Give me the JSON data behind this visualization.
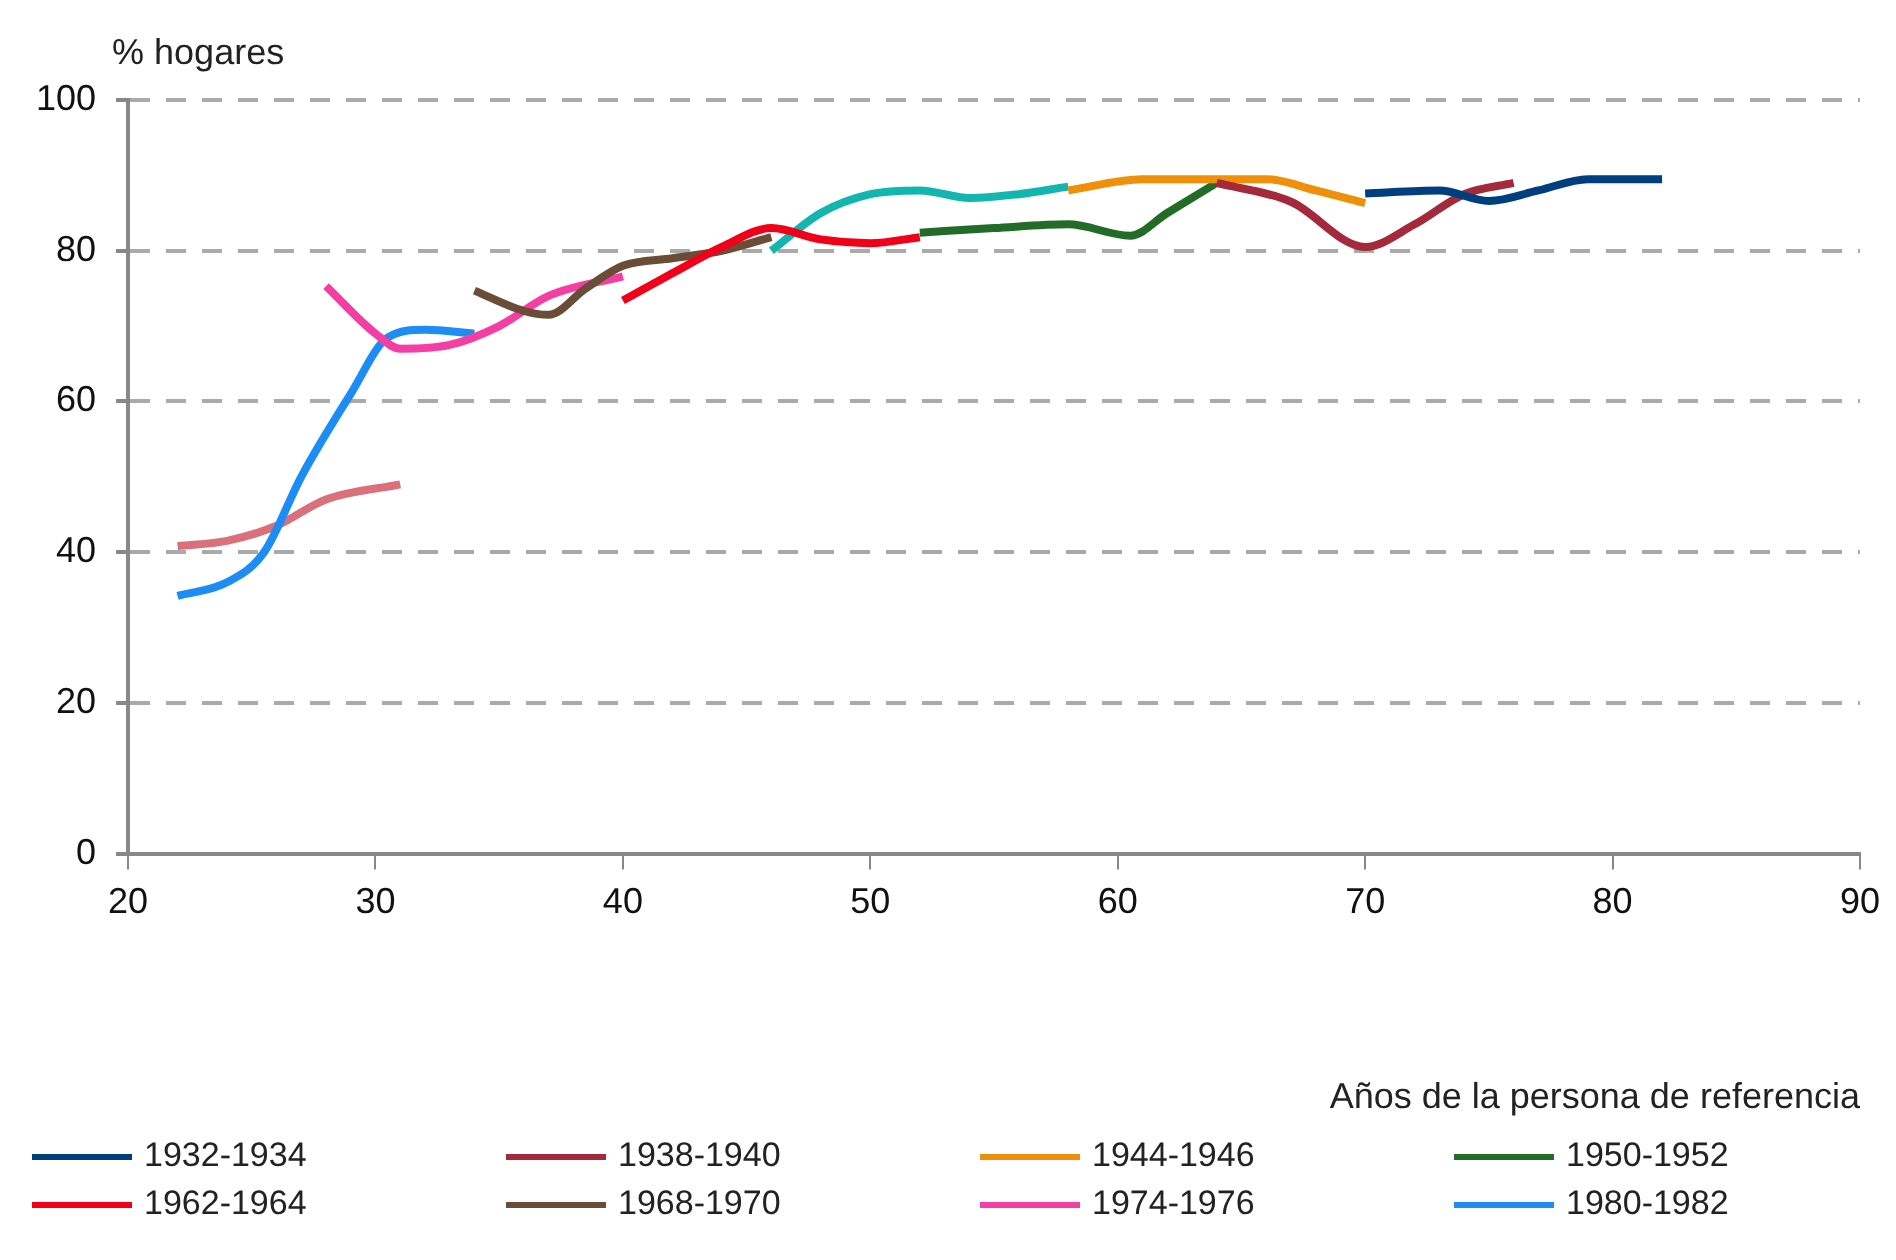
{
  "chart_data": {
    "type": "line",
    "ylabel": "% hogares",
    "xlabel": "Años de la persona de referencia",
    "xlim": [
      20,
      90
    ],
    "xticks": [
      20,
      30,
      40,
      50,
      60,
      70,
      80,
      90
    ],
    "ylim": [
      0,
      100
    ],
    "yticks": [
      0,
      20,
      40,
      60,
      80,
      100
    ],
    "grid": "y",
    "legend": "bottom",
    "line_style": "solid",
    "marker": "none",
    "series": [
      {
        "name": "1932-1934",
        "color": "#003f7f",
        "x": [
          70,
          73,
          75,
          77,
          79,
          82
        ],
        "values": [
          87.6,
          88,
          86.6,
          88,
          89.5,
          89.5
        ]
      },
      {
        "name": "1938-1940",
        "color": "#a3293b",
        "x": [
          64,
          67,
          70,
          72,
          74,
          76
        ],
        "values": [
          89,
          86.5,
          80.5,
          83.5,
          87.5,
          89
        ]
      },
      {
        "name": "1944-1946",
        "color": "#f0900a",
        "x": [
          58,
          61,
          64,
          66,
          68,
          70
        ],
        "values": [
          88,
          89.5,
          89.5,
          89.5,
          88,
          86.3
        ]
      },
      {
        "name": "1950-1952",
        "color": "#236c28",
        "x": [
          52,
          55,
          58,
          60.5,
          62,
          64
        ],
        "values": [
          82.4,
          83,
          83.5,
          82,
          85,
          89
        ]
      },
      {
        "name": "1962-1964",
        "color": "#f2001a",
        "x": [
          40,
          42,
          44,
          46,
          48,
          50,
          52
        ],
        "values": [
          73.4,
          77,
          80.5,
          83,
          81.5,
          81,
          81.8
        ]
      },
      {
        "name": "1968-1970",
        "color": "#6b4c36",
        "x": [
          34,
          36,
          37,
          38.5,
          40,
          42,
          44,
          46
        ],
        "values": [
          74.7,
          72,
          71.5,
          75,
          78,
          79,
          80,
          81.8
        ]
      },
      {
        "name": "1974-1976",
        "color": "#f43ea4",
        "x": [
          28,
          30,
          31,
          33,
          35,
          37,
          40
        ],
        "values": [
          75.3,
          69,
          67,
          67.5,
          70,
          74,
          76.6
        ]
      },
      {
        "name": "1980-1982",
        "color": "#1e8cf5",
        "x": [
          22,
          24,
          25.5,
          27,
          29,
          30.5,
          32,
          34
        ],
        "values": [
          34.2,
          36,
          40,
          50,
          61,
          68.5,
          69.5,
          69
        ]
      },
      {
        "color": "#d9707a",
        "x": [
          22,
          24,
          26,
          28,
          31
        ],
        "values": [
          40.8,
          41.5,
          43.5,
          47,
          49
        ]
      },
      {
        "color": "#13b6ae",
        "x": [
          46,
          48,
          50,
          52,
          54,
          56,
          58
        ],
        "values": [
          80,
          85,
          87.5,
          88,
          87,
          87.5,
          88.5
        ]
      }
    ]
  }
}
